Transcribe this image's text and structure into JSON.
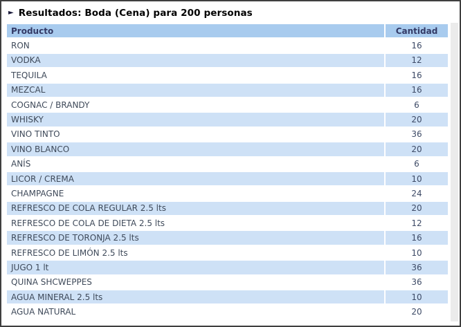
{
  "header": {
    "arrow_icon": "►",
    "title": "Resultados: Boda (Cena) para 200 personas"
  },
  "table": {
    "columns": [
      "Producto",
      "Cantidad"
    ],
    "rows": [
      {
        "producto": "RON",
        "cantidad": "16"
      },
      {
        "producto": "VODKA",
        "cantidad": "12"
      },
      {
        "producto": "TEQUILA",
        "cantidad": "16"
      },
      {
        "producto": "MEZCAL",
        "cantidad": "16"
      },
      {
        "producto": "COGNAC / BRANDY",
        "cantidad": "6"
      },
      {
        "producto": "WHISKY",
        "cantidad": "20"
      },
      {
        "producto": "VINO TINTO",
        "cantidad": "36"
      },
      {
        "producto": "VINO BLANCO",
        "cantidad": "20"
      },
      {
        "producto": "ANÍS",
        "cantidad": "6"
      },
      {
        "producto": "LICOR / CREMA",
        "cantidad": "10"
      },
      {
        "producto": "CHAMPAGNE",
        "cantidad": "24"
      },
      {
        "producto": "REFRESCO DE COLA REGULAR 2.5 lts",
        "cantidad": "20"
      },
      {
        "producto": "REFRESCO DE COLA DE DIETA 2.5 lts",
        "cantidad": "12"
      },
      {
        "producto": "REFRESCO DE TORONJA 2.5 lts",
        "cantidad": "16"
      },
      {
        "producto": "REFRESCO DE LIMÓN 2.5 lts",
        "cantidad": "10"
      },
      {
        "producto": "JUGO 1 lt",
        "cantidad": "36"
      },
      {
        "producto": "QUINA SHCWEPPES",
        "cantidad": "36"
      },
      {
        "producto": "AGUA MINERAL 2.5 lts",
        "cantidad": "10"
      },
      {
        "producto": "AGUA NATURAL",
        "cantidad": "20"
      }
    ]
  },
  "colors": {
    "header_row_bg": "#a8cbee",
    "alt_row_bg": "#cee1f6",
    "header_text": "#333a66",
    "cell_text": "#3f4a5a",
    "outer_border": "#3f3f3f"
  }
}
